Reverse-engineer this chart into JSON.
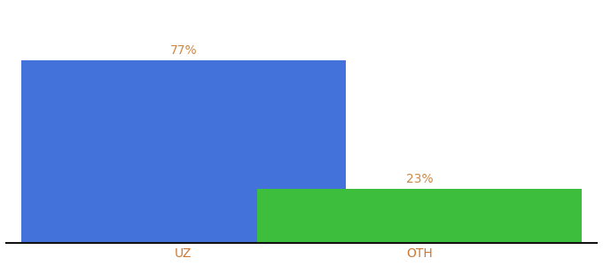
{
  "categories": [
    "UZ",
    "OTH"
  ],
  "values": [
    77,
    23
  ],
  "bar_colors": [
    "#4472db",
    "#3dbf3d"
  ],
  "label_color": "#cc8844",
  "value_labels": [
    "77%",
    "23%"
  ],
  "ylim": [
    0,
    100
  ],
  "background_color": "#ffffff",
  "bar_width": 0.55,
  "bar_positions": [
    0.3,
    0.7
  ],
  "value_fontsize": 10,
  "tick_fontsize": 10,
  "tick_color": "#cc7733"
}
